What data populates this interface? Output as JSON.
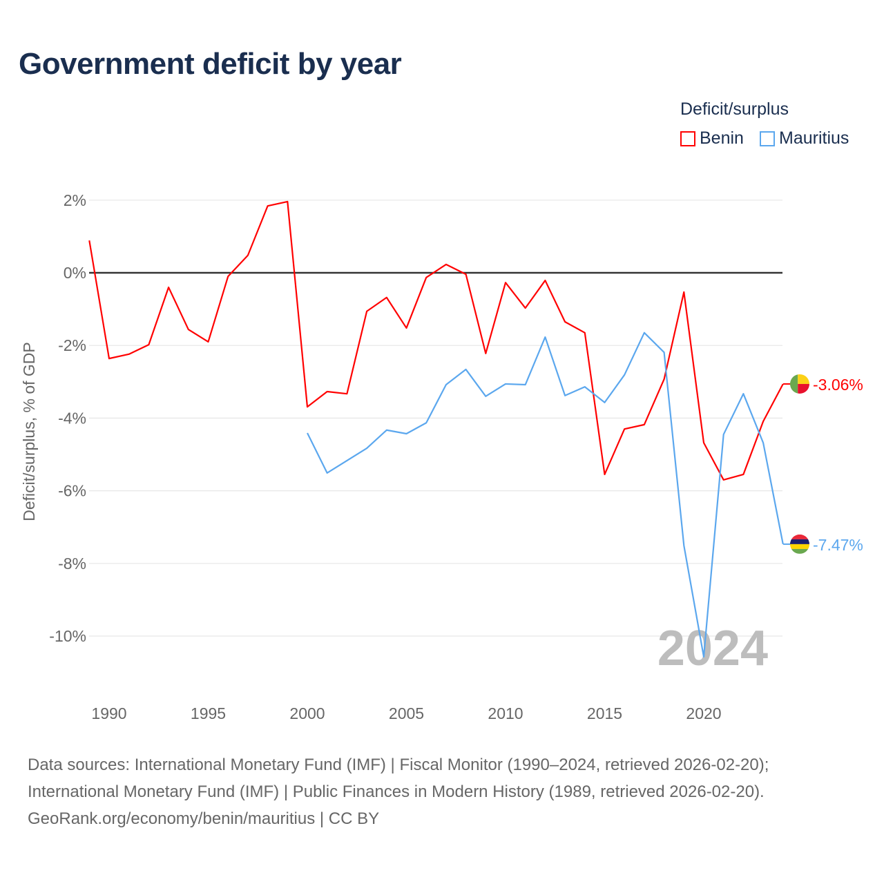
{
  "title": "Government deficit by year",
  "legend": {
    "title": "Deficit/surplus",
    "items": [
      {
        "label": "Benin",
        "color": "#ff0000"
      },
      {
        "label": "Mauritius",
        "color": "#5ba7ee"
      }
    ]
  },
  "source": {
    "line1": "Data sources: International Monetary Fund (IMF) | Fiscal Monitor (1990–2024, retrieved 2026-02-20);",
    "line2": "International Monetary Fund (IMF) | Public Finances in Modern History (1989, retrieved 2026-02-20).",
    "line3": "GeoRank.org/economy/benin/mauritius | CC BY"
  },
  "chart_data": {
    "type": "line",
    "title": "Government deficit by year",
    "xlabel": "",
    "ylabel": "Deficit/surplus, % of GDP",
    "xlim": [
      1989,
      2024
    ],
    "ylim": [
      -11.5,
      2.5
    ],
    "xticks": [
      1990,
      1995,
      2000,
      2005,
      2010,
      2015,
      2020
    ],
    "yticks": [
      2,
      0,
      -2,
      -4,
      -6,
      -8,
      -10
    ],
    "ytick_labels": [
      "2%",
      "0%",
      "-2%",
      "-4%",
      "-6%",
      "-8%",
      "-10%"
    ],
    "watermark": "2024",
    "series": [
      {
        "name": "Benin",
        "color": "#ff0000",
        "end_label": "-3.06%",
        "x": [
          1989,
          1990,
          1991,
          1992,
          1993,
          1994,
          1995,
          1996,
          1997,
          1998,
          1999,
          2000,
          2001,
          2002,
          2003,
          2004,
          2005,
          2006,
          2007,
          2008,
          2009,
          2010,
          2011,
          2012,
          2013,
          2014,
          2015,
          2016,
          2017,
          2018,
          2019,
          2020,
          2021,
          2022,
          2023,
          2024
        ],
        "values": [
          0.89,
          -2.36,
          -2.24,
          -1.98,
          -0.4,
          -1.56,
          -1.9,
          -0.1,
          0.48,
          1.84,
          1.96,
          -3.69,
          -3.27,
          -3.33,
          -1.06,
          -0.68,
          -1.52,
          -0.13,
          0.23,
          -0.04,
          -2.22,
          -0.27,
          -0.97,
          -0.21,
          -1.35,
          -1.65,
          -5.55,
          -4.3,
          -4.18,
          -2.93,
          -0.53,
          -4.68,
          -5.7,
          -5.55,
          -4.09,
          -3.06
        ]
      },
      {
        "name": "Mauritius",
        "color": "#5ba7ee",
        "end_label": "-7.47%",
        "x": [
          2000,
          2001,
          2002,
          2003,
          2004,
          2005,
          2006,
          2007,
          2008,
          2009,
          2010,
          2011,
          2012,
          2013,
          2014,
          2015,
          2016,
          2017,
          2018,
          2019,
          2020,
          2021,
          2022,
          2023,
          2024
        ],
        "values": [
          -4.41,
          -5.51,
          -5.17,
          -4.83,
          -4.33,
          -4.43,
          -4.13,
          -3.08,
          -2.66,
          -3.4,
          -3.06,
          -3.08,
          -1.77,
          -3.38,
          -3.14,
          -3.57,
          -2.81,
          -1.65,
          -2.19,
          -7.51,
          -10.57,
          -4.45,
          -3.33,
          -4.68,
          -7.47
        ]
      }
    ]
  }
}
